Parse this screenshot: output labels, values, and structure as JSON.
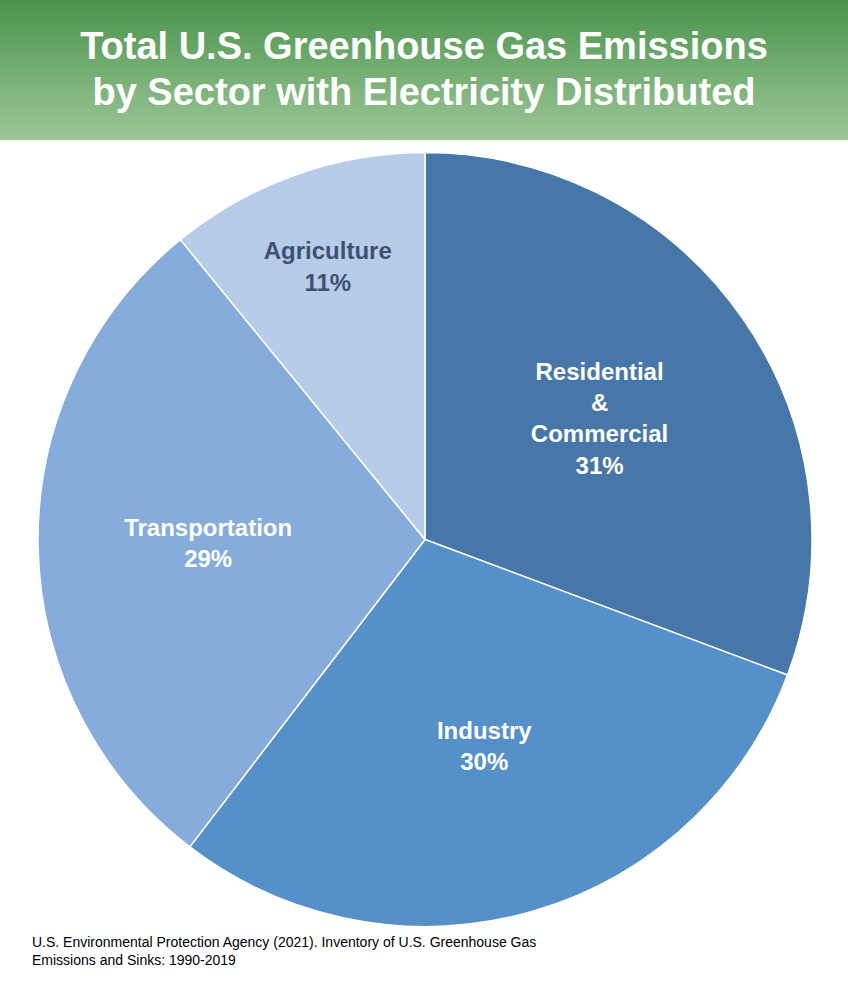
{
  "chart_data": {
    "type": "pie",
    "title": "Total U.S. Greenhouse Gas Emissions by Sector with Electricity Distributed",
    "categories": [
      "Residential & Commercial",
      "Industry",
      "Transportation",
      "Agriculture"
    ],
    "values": [
      31,
      30,
      29,
      11
    ],
    "value_labels": [
      "31%",
      "30%",
      "29%",
      "11%"
    ],
    "colors": [
      "#4677a8",
      "#5590c8",
      "#85acdb",
      "#b7cce8"
    ],
    "data_labels": true,
    "annotations": [
      "U.S. Environmental Protection Agency (2021). Inventory of U.S. Greenhouse Gas Emissions and Sinks: 1990-2019"
    ]
  }
}
